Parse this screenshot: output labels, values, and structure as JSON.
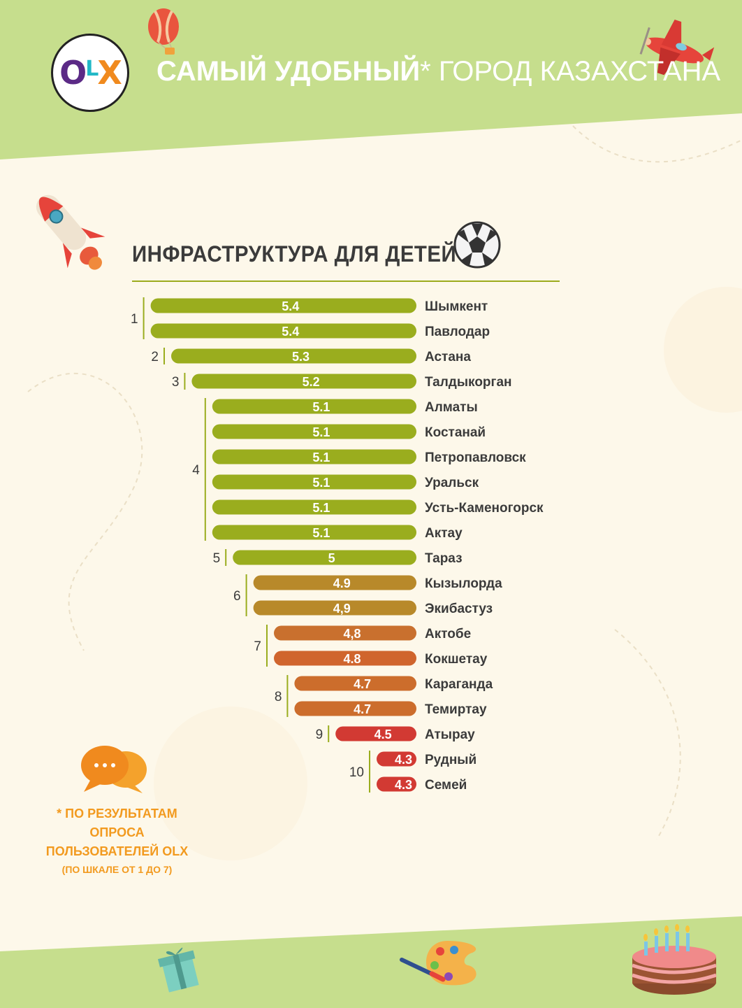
{
  "header": {
    "logo_o": "O",
    "logo_l": "L",
    "logo_x": "X",
    "title_strong": "САМЫЙ УДОБНЫЙ",
    "title_light": "* ГОРОД КАЗАХСТАНА"
  },
  "section": {
    "title": "ИНФРАСТРУКТУРА ДЛЯ ДЕТЕЙ"
  },
  "footnote": {
    "line1": "* ПО РЕЗУЛЬТАТАМ",
    "line2": "ОПРОСА",
    "line3": "ПОЛЬЗОВАТЕЛЕЙ OLX",
    "line4": "(ПО ШКАЛЕ ОТ 1 ДО 7)"
  },
  "icons": [
    "olx-logo",
    "hot-air-balloon-icon",
    "airplane-icon",
    "rocket-icon",
    "soccer-ball-icon",
    "chat-bubbles-icon",
    "gift-box-icon",
    "paint-palette-icon",
    "birthday-cake-icon"
  ],
  "colors": {
    "header_green": "#c6de8d",
    "bar_green": "#9aad1e",
    "bar_orange": "#cc6d2c",
    "bar_red": "#d23a33",
    "footnote": "#f29a1f"
  },
  "chart_data": {
    "type": "bar",
    "orientation": "horizontal",
    "title": "ИНФРАСТРУКТУРА ДЛЯ ДЕТЕЙ",
    "scale": "1-7",
    "categories": [
      "Шымкент",
      "Павлодар",
      "Астана",
      "Талдыкорган",
      "Алматы",
      "Костанай",
      "Петропавловск",
      "Уральск",
      "Усть-Каменогорск",
      "Актау",
      "Тараз",
      "Кызылорда",
      "Экибастуз",
      "Актобе",
      "Кокшетау",
      "Караганда",
      "Темиртау",
      "Атырау",
      "Рудный",
      "Семей"
    ],
    "values": [
      5.4,
      5.4,
      5.3,
      5.2,
      5.1,
      5.1,
      5.1,
      5.1,
      5.1,
      5.1,
      5.0,
      4.9,
      4.9,
      4.8,
      4.8,
      4.7,
      4.7,
      4.5,
      4.3,
      4.3
    ],
    "value_labels": [
      "5.4",
      "5.4",
      "5.3",
      "5.2",
      "5.1",
      "5.1",
      "5.1",
      "5.1",
      "5.1",
      "5.1",
      "5",
      "4.9",
      "4,9",
      "4,8",
      "4.8",
      "4.7",
      "4.7",
      "4.5",
      "4.3",
      "4.3"
    ],
    "ranks": [
      {
        "label": "1",
        "from": 0,
        "to": 1
      },
      {
        "label": "2",
        "from": 2,
        "to": 2
      },
      {
        "label": "3",
        "from": 3,
        "to": 3
      },
      {
        "label": "4",
        "from": 4,
        "to": 9
      },
      {
        "label": "5",
        "from": 10,
        "to": 10
      },
      {
        "label": "6",
        "from": 11,
        "to": 12
      },
      {
        "label": "7",
        "from": 13,
        "to": 14
      },
      {
        "label": "8",
        "from": 15,
        "to": 16
      },
      {
        "label": "9",
        "from": 17,
        "to": 17
      },
      {
        "label": "10",
        "from": 18,
        "to": 19
      }
    ]
  }
}
